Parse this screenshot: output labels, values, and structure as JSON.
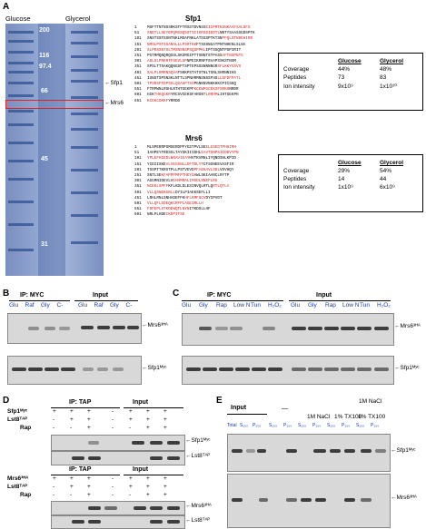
{
  "panels": {
    "A": "A",
    "B": "B",
    "C": "C",
    "D": "D",
    "E": "E"
  },
  "panelA": {
    "lane_glucose": "Glucose",
    "lane_glycerol": "Glycerol",
    "markers": [
      "200",
      "116",
      "97.4",
      "66",
      "45",
      "31"
    ],
    "arrow_sfp1": "Sfp1",
    "arrow_mrs6": "Mrs6",
    "sfp1_title": "Sfp1",
    "mrs6_title": "Mrs6",
    "sfp1_nums": [
      "1",
      "51",
      "101",
      "151",
      "201",
      "251",
      "301",
      "351",
      "401",
      "451",
      "501",
      "551",
      "601",
      "651"
    ],
    "mrs6_nums": [
      "1",
      "51",
      "101",
      "151",
      "201",
      "251",
      "301",
      "351",
      "401",
      "451",
      "501",
      "551",
      "601"
    ],
    "table_head": [
      "Glucose",
      "Glycerol"
    ],
    "sfp1_rows": [
      [
        "Coverage",
        "44%",
        "48%"
      ],
      [
        "Peptides",
        "73",
        "83"
      ],
      [
        "Ion intensity",
        "9x10⁹",
        "1x10¹⁰"
      ]
    ],
    "mrs6_rows": [
      [
        "Coverage",
        "29%",
        "54%"
      ],
      [
        "Peptides",
        "14",
        "44"
      ],
      [
        "Ion intensity",
        "1x10⁹",
        "6x10⁹"
      ]
    ]
  },
  "panelB": {
    "ip": "IP: MYC",
    "input": "Input",
    "lanes": [
      "Glu",
      "Raf",
      "Gly",
      "C-",
      "Glu",
      "Raf",
      "Gly",
      "C-"
    ],
    "mrs6": "Mrs6³ᴴᴬ",
    "sfp1": "Sfp1ᴹʸᶜ"
  },
  "panelC": {
    "ip": "IP: MYC",
    "input": "Input",
    "lanes": [
      "Glu",
      "Gly",
      "Rap",
      "Low N",
      "Tun",
      "H₂O₂",
      "Glu",
      "Gly",
      "Rap",
      "Low N",
      "Tun",
      "H₂O₂"
    ],
    "mrs6": "Mrs6³ᴴᴬ",
    "sfp1": "Sfp1ᴹʸᶜ"
  },
  "panelD": {
    "ip": "IP: TAP",
    "input": "Input",
    "row1": "Sfp1ᴹʸᶜ",
    "row1b": "Mrs6³ᴴᴬ",
    "row2": "Lst8ᵀᴬᴾ",
    "row3": "Rap",
    "top_a": [
      "+",
      "+",
      "+",
      "-",
      "+",
      "+",
      "+"
    ],
    "top_b": [
      "-",
      "+",
      "+",
      "-",
      "+",
      "+",
      "+"
    ],
    "top_c": [
      "-",
      "-",
      "+",
      "-",
      "-",
      "+",
      "+"
    ],
    "labels": [
      "Sfp1ᴹʸᶜ",
      "Lst8ᵀᴬᴾ",
      "Mrs6³ᴴᴬ",
      "Lst8ᵀᴬᴾ"
    ]
  },
  "panelE": {
    "input": "Input",
    "dash": "—",
    "nacl": "1M NaCl",
    "tx": "1% TX100",
    "naclt1": "1M NaCl",
    "naclt2": "1% TX100",
    "sub": [
      "Total",
      "S₁₀₀",
      "P₁₀₀",
      "S₁₀₀",
      "P₁₀₀",
      "S₁₀₀",
      "P₁₀₀",
      "S₁₀₀",
      "P₁₀₀",
      "S₁₀₀",
      "P₁₀₀"
    ],
    "sfp1": "Sfp1ᴹʸᶜ",
    "mrs6": "Mrs6³ᴴᴬ"
  }
}
